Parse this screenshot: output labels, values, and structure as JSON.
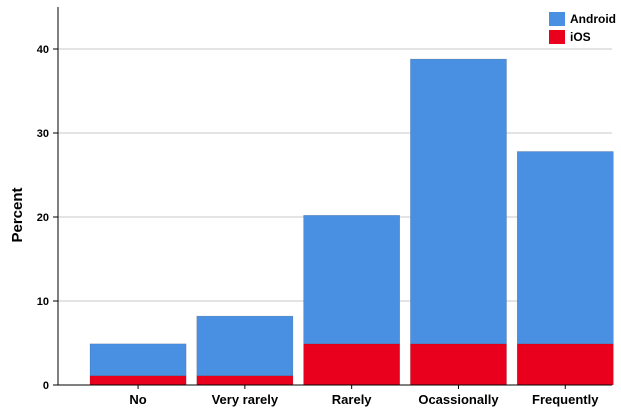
{
  "chart_data": {
    "type": "bar",
    "stacked": true,
    "categories": [
      "No",
      "Very rarely",
      "Rarely",
      "Ocassionally",
      "Frequently"
    ],
    "series": [
      {
        "name": "iOS",
        "values": [
          1.1,
          1.1,
          4.9,
          4.9,
          4.9
        ],
        "color": "#e8001c"
      },
      {
        "name": "Android",
        "values": [
          3.8,
          7.1,
          15.3,
          33.9,
          22.9
        ],
        "color": "#4a90e2"
      }
    ],
    "totals": [
      4.9,
      8.2,
      20.2,
      38.8,
      27.8
    ],
    "ylabel": "Percent",
    "xlabel": "",
    "ylim": [
      0,
      45
    ],
    "yticks": [
      0,
      10,
      20,
      30,
      40
    ],
    "grid": true,
    "legend": "top-right"
  }
}
